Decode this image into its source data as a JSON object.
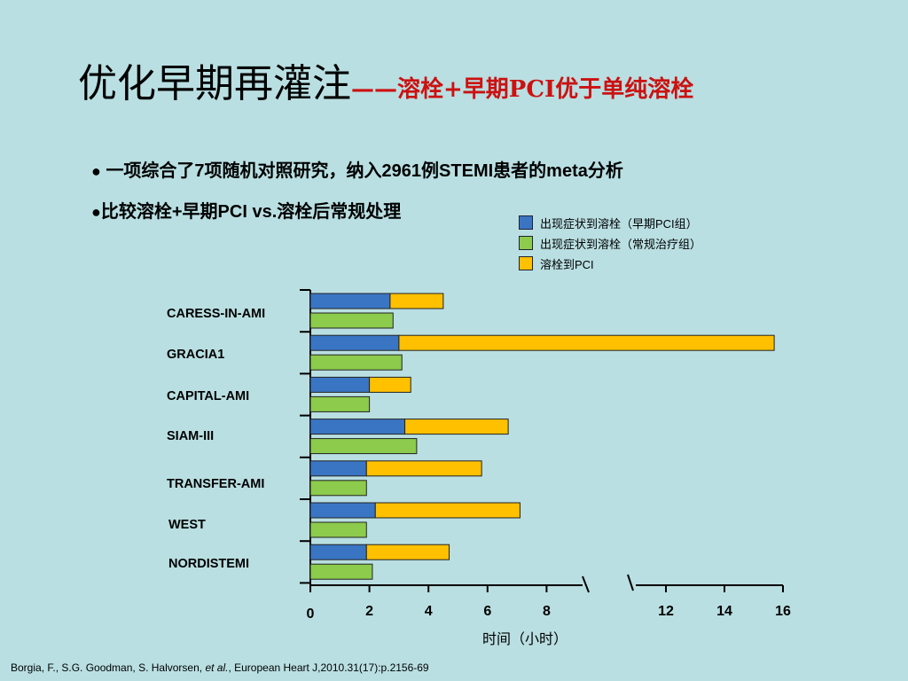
{
  "slide": {
    "title_main": "优化早期再灌注",
    "title_sub": "——溶栓+早期PCI优于单纯溶栓",
    "bullets": [
      "一项综合了7项随机对照研究，纳入2961例STEMI患者的meta分析",
      "比较溶栓+早期PCI vs.溶栓后常规处理"
    ],
    "bullet_markers": [
      "●",
      "●"
    ],
    "footer": {
      "prefix": "Borgia, F., S.G. Goodman, S. Halvorsen, ",
      "etal": "et al.",
      "suffix": ", European Heart J,2010.31(17):p.2156-69"
    }
  },
  "chart_data": {
    "type": "bar",
    "orientation": "horizontal",
    "categories": [
      "CARESS-IN-AMI",
      "GRACIA1",
      "CAPITAL-AMI",
      "SIAM-III",
      "TRANSFER-AMI",
      "WEST",
      "NORDISTEMI"
    ],
    "series": [
      {
        "name": "出现症状到溶栓（早期PCI组）",
        "color": "#3a75c4",
        "values": [
          2.7,
          3.0,
          2.0,
          3.2,
          1.9,
          2.2,
          1.9
        ]
      },
      {
        "name": "出现症状到溶栓（常规治疗组）",
        "color": "#8ccb4c",
        "values": [
          2.8,
          3.1,
          2.0,
          3.6,
          1.9,
          1.9,
          2.1
        ]
      },
      {
        "name": "溶栓到PCI",
        "color": "#ffc000",
        "stacked_on": 0,
        "values": [
          1.8,
          12.7,
          1.4,
          3.5,
          3.9,
          4.9,
          2.8
        ]
      }
    ],
    "xlabel": "时间（小时）",
    "xlim": [
      0,
      16
    ],
    "xticks": [
      0,
      2,
      4,
      6,
      8,
      12,
      14,
      16
    ],
    "axis_break": [
      8.8,
      11
    ],
    "legend_position": "top-right",
    "grid": false
  }
}
